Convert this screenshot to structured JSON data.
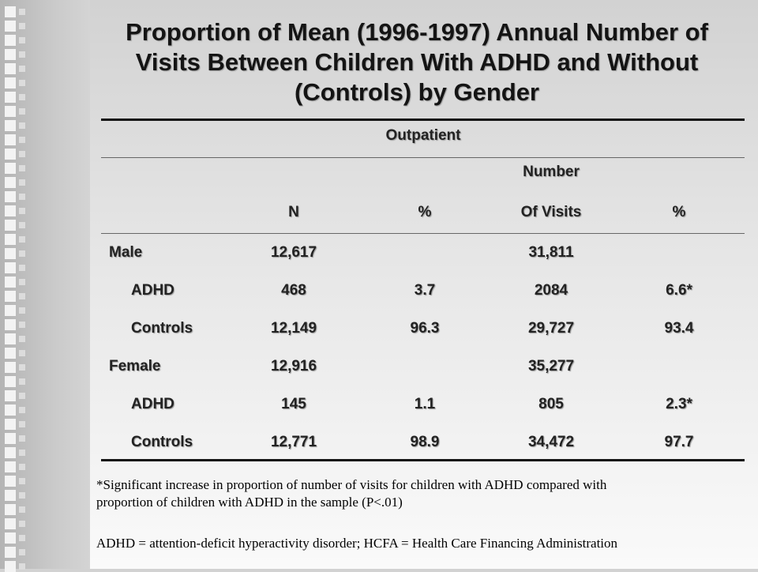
{
  "title": "Proportion of Mean (1996-1997) Annual Number of Visits Between Children With ADHD and Without (Controls) by Gender",
  "table": {
    "group_header": "Outpatient",
    "col_n": "N",
    "col_pct1": "%",
    "col_visits_line1": "Number",
    "col_visits_line2": "Of Visits",
    "col_pct2": "%",
    "rows": [
      {
        "label": "Male",
        "n": "12,617",
        "pct1": "",
        "visits": "31,811",
        "pct2": ""
      },
      {
        "label": "ADHD",
        "n": "468",
        "pct1": "3.7",
        "visits": "2084",
        "pct2": "6.6*"
      },
      {
        "label": "Controls",
        "n": "12,149",
        "pct1": "96.3",
        "visits": "29,727",
        "pct2": "93.4"
      },
      {
        "label": "Female",
        "n": "12,916",
        "pct1": "",
        "visits": "35,277",
        "pct2": ""
      },
      {
        "label": "ADHD",
        "n": "145",
        "pct1": "1.1",
        "visits": "805",
        "pct2": "2.3*"
      },
      {
        "label": "Controls",
        "n": "12,771",
        "pct1": "98.9",
        "visits": "34,472",
        "pct2": "97.7"
      }
    ]
  },
  "footnotes": {
    "significance_line1": "*Significant increase in proportion of number of visits for children with ADHD compared with",
    "significance_line2": "proportion of children with ADHD in the sample (P<.01)",
    "abbreviations": "ADHD = attention-deficit hyperactivity disorder; HCFA = Health Care Financing Administration"
  }
}
